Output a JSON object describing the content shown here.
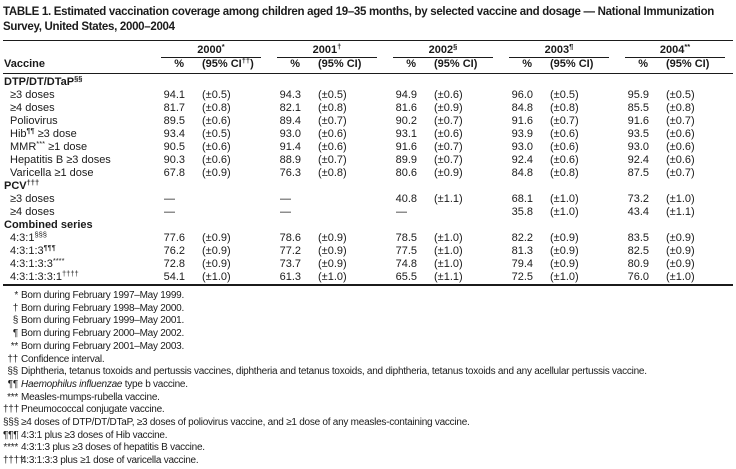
{
  "title": "TABLE 1. Estimated vaccination coverage among children aged 19–35 months, by selected vaccine and dosage — National Immunization Survey, United States, 2000–2004",
  "table": {
    "vaccine_header": "Vaccine",
    "pct_header": "%",
    "year_groups": [
      {
        "year": "2000",
        "marker": "*",
        "ci_pre": "(95% CI",
        "ci_sup": "††",
        "ci_post": ")"
      },
      {
        "year": "2001",
        "marker": "†",
        "ci_pre": "(95% CI",
        "ci_sup": "",
        "ci_post": ")"
      },
      {
        "year": "2002",
        "marker": "§",
        "ci_pre": "(95% CI",
        "ci_sup": "",
        "ci_post": ")"
      },
      {
        "year": "2003",
        "marker": "¶",
        "ci_pre": "(95% CI",
        "ci_sup": "",
        "ci_post": ")"
      },
      {
        "year": "2004",
        "marker": "**",
        "ci_pre": "(95% CI",
        "ci_sup": "",
        "ci_post": ")"
      }
    ],
    "sections": [
      {
        "header": {
          "pre": "DTP/DT/DTaP",
          "sup": "§§"
        },
        "rows": [
          {
            "label": {
              "pre": "≥3 doses"
            },
            "cells": [
              [
                "94.1",
                "(±0.5)"
              ],
              [
                "94.3",
                "(±0.5)"
              ],
              [
                "94.9",
                "(±0.6)"
              ],
              [
                "96.0",
                "(±0.5)"
              ],
              [
                "95.9",
                "(±0.5)"
              ]
            ]
          },
          {
            "label": {
              "pre": "≥4 doses"
            },
            "cells": [
              [
                "81.7",
                "(±0.8)"
              ],
              [
                "82.1",
                "(±0.8)"
              ],
              [
                "81.6",
                "(±0.9)"
              ],
              [
                "84.8",
                "(±0.8)"
              ],
              [
                "85.5",
                "(±0.8)"
              ]
            ]
          },
          {
            "label": {
              "pre": "Poliovirus"
            },
            "cells": [
              [
                "89.5",
                "(±0.6)"
              ],
              [
                "89.4",
                "(±0.7)"
              ],
              [
                "90.2",
                "(±0.7)"
              ],
              [
                "91.6",
                "(±0.7)"
              ],
              [
                "91.6",
                "(±0.7)"
              ]
            ]
          },
          {
            "label": {
              "pre": "Hib",
              "sup": "¶¶",
              "post": " ≥3 dose"
            },
            "cells": [
              [
                "93.4",
                "(±0.5)"
              ],
              [
                "93.0",
                "(±0.6)"
              ],
              [
                "93.1",
                "(±0.6)"
              ],
              [
                "93.9",
                "(±0.6)"
              ],
              [
                "93.5",
                "(±0.6)"
              ]
            ]
          },
          {
            "label": {
              "pre": "MMR",
              "sup": "***",
              "post": " ≥1 dose"
            },
            "cells": [
              [
                "90.5",
                "(±0.6)"
              ],
              [
                "91.4",
                "(±0.6)"
              ],
              [
                "91.6",
                "(±0.7)"
              ],
              [
                "93.0",
                "(±0.6)"
              ],
              [
                "93.0",
                "(±0.6)"
              ]
            ]
          },
          {
            "label": {
              "pre": "Hepatitis B ≥3 doses"
            },
            "cells": [
              [
                "90.3",
                "(±0.6)"
              ],
              [
                "88.9",
                "(±0.7)"
              ],
              [
                "89.9",
                "(±0.7)"
              ],
              [
                "92.4",
                "(±0.6)"
              ],
              [
                "92.4",
                "(±0.6)"
              ]
            ]
          },
          {
            "label": {
              "pre": "Varicella ≥1 dose"
            },
            "cells": [
              [
                "67.8",
                "(±0.9)"
              ],
              [
                "76.3",
                "(±0.8)"
              ],
              [
                "80.6",
                "(±0.9)"
              ],
              [
                "84.8",
                "(±0.8)"
              ],
              [
                "87.5",
                "(±0.7)"
              ]
            ]
          }
        ]
      },
      {
        "header": {
          "pre": "PCV",
          "sup": "†††"
        },
        "rows": [
          {
            "label": {
              "pre": "≥3 doses"
            },
            "cells": [
              [
                "—",
                ""
              ],
              [
                "—",
                ""
              ],
              [
                "40.8",
                "(±1.1)"
              ],
              [
                "68.1",
                "(±1.0)"
              ],
              [
                "73.2",
                "(±1.0)"
              ]
            ]
          },
          {
            "label": {
              "pre": "≥4 doses"
            },
            "cells": [
              [
                "—",
                ""
              ],
              [
                "—",
                ""
              ],
              [
                "—",
                ""
              ],
              [
                "35.8",
                "(±1.0)"
              ],
              [
                "43.4",
                "(±1.1)"
              ]
            ]
          }
        ]
      },
      {
        "header": {
          "pre": "Combined series",
          "sup": ""
        },
        "rows": [
          {
            "label": {
              "pre": "4:3:1",
              "sup": "§§§"
            },
            "cells": [
              [
                "77.6",
                "(±0.9)"
              ],
              [
                "78.6",
                "(±0.9)"
              ],
              [
                "78.5",
                "(±1.0)"
              ],
              [
                "82.2",
                "(±0.9)"
              ],
              [
                "83.5",
                "(±0.9)"
              ]
            ]
          },
          {
            "label": {
              "pre": "4:3:1:3",
              "sup": "¶¶¶"
            },
            "cells": [
              [
                "76.2",
                "(±0.9)"
              ],
              [
                "77.2",
                "(±0.9)"
              ],
              [
                "77.5",
                "(±1.0)"
              ],
              [
                "81.3",
                "(±0.9)"
              ],
              [
                "82.5",
                "(±0.9)"
              ]
            ]
          },
          {
            "label": {
              "pre": "4:3:1:3:3",
              "sup": "****"
            },
            "cells": [
              [
                "72.8",
                "(±0.9)"
              ],
              [
                "73.7",
                "(±0.9)"
              ],
              [
                "74.8",
                "(±1.0)"
              ],
              [
                "79.4",
                "(±0.9)"
              ],
              [
                "80.9",
                "(±0.9)"
              ]
            ]
          },
          {
            "label": {
              "pre": "4:3:1:3:3:1",
              "sup": "††††"
            },
            "cells": [
              [
                "54.1",
                "(±1.0)"
              ],
              [
                "61.3",
                "(±1.0)"
              ],
              [
                "65.5",
                "(±1.1)"
              ],
              [
                "72.5",
                "(±1.0)"
              ],
              [
                "76.0",
                "(±1.0)"
              ]
            ]
          }
        ]
      }
    ]
  },
  "footnotes": [
    {
      "marker": "*",
      "pre": "Born during February 1997–May 1999."
    },
    {
      "marker": "†",
      "pre": "Born during February 1998–May 2000."
    },
    {
      "marker": "§",
      "pre": "Born during February 1999–May 2001."
    },
    {
      "marker": "¶",
      "pre": "Born during February 2000–May 2002."
    },
    {
      "marker": "**",
      "pre": "Born during February 2001–May 2003."
    },
    {
      "marker": "††",
      "pre": "Confidence interval."
    },
    {
      "marker": "§§",
      "pre": "Diphtheria, tetanus toxoids and pertussis vaccines, diphtheria and tetanus toxoids, and diphtheria, tetanus toxoids and any acellular pertussis vaccine."
    },
    {
      "marker": "¶¶",
      "pre": "",
      "italic": "Haemophilus influenzae",
      "post": " type b vaccine."
    },
    {
      "marker": "***",
      "pre": "Measles-mumps-rubella vaccine."
    },
    {
      "marker": "†††",
      "pre": "Pneumococcal conjugate vaccine."
    },
    {
      "marker": "§§§",
      "pre": "≥4 doses of DTP/DT/DTaP, ≥3 doses of poliovirus vaccine, and ≥1 dose of any measles-containing vaccine."
    },
    {
      "marker": "¶¶¶",
      "pre": "4:3:1 plus ≥3 doses of Hib vaccine."
    },
    {
      "marker": "****",
      "pre": "4:3:1:3 plus ≥3 doses of hepatitis B vaccine."
    },
    {
      "marker": "††††",
      "pre": "4:3:1:3:3 plus ≥1 dose of varicella vaccine."
    }
  ]
}
